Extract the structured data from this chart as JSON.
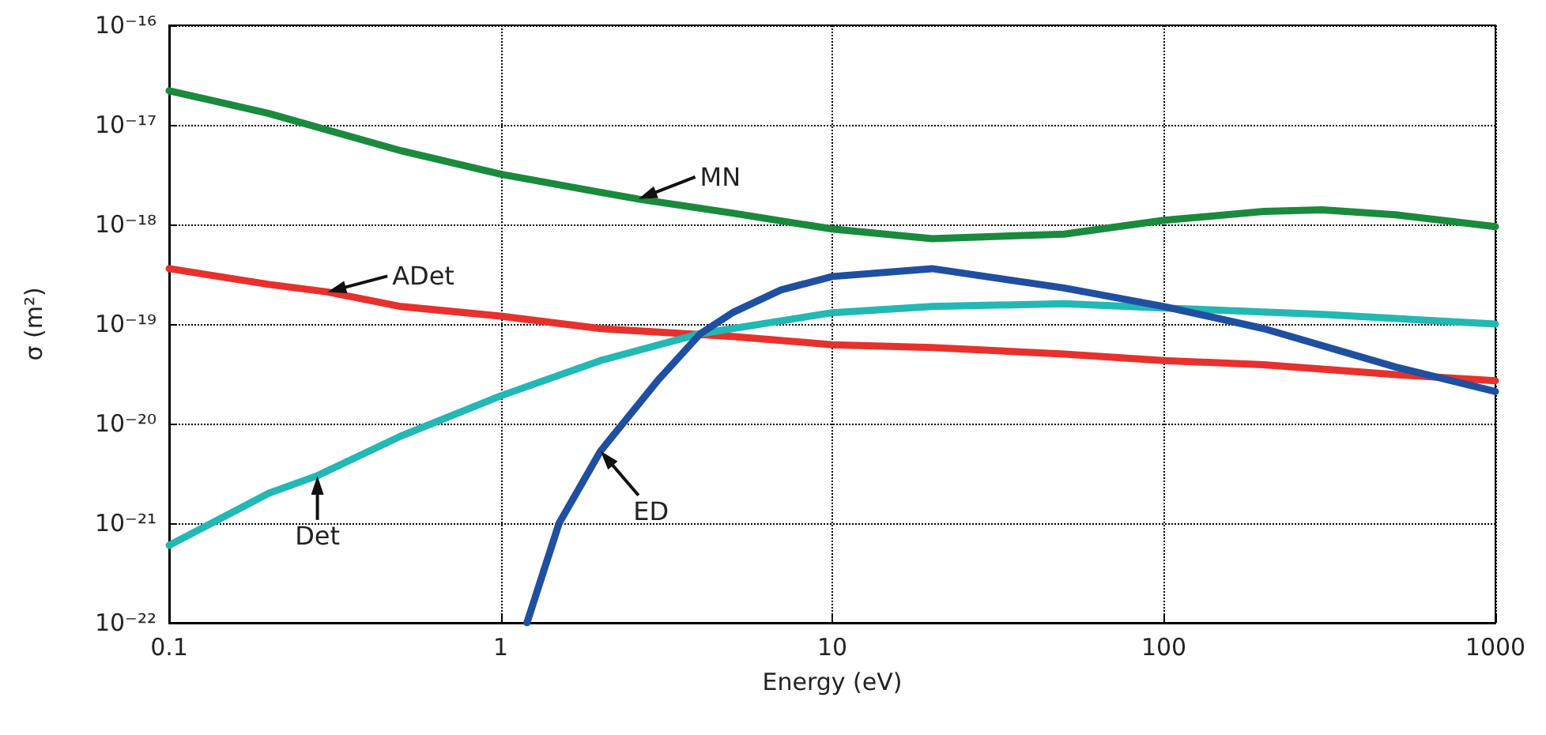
{
  "chart_data": {
    "type": "line",
    "xlabel": "Energy (eV)",
    "ylabel": "σ (m²)",
    "log": "xy",
    "grid": true,
    "marker": "none",
    "line_style": "solid",
    "xlim": [
      0.1,
      1000
    ],
    "xticks": [
      0.1,
      1,
      10,
      100,
      1000
    ],
    "ylim": [
      1e-22,
      1e-16
    ],
    "yticks": [
      {
        "value": 1e-22,
        "label": "10⁻²²"
      },
      {
        "value": 1e-21,
        "label": "10⁻²¹"
      },
      {
        "value": 1e-20,
        "label": "10⁻²⁰"
      },
      {
        "value": 1e-19,
        "label": "10⁻¹⁹"
      },
      {
        "value": 1e-18,
        "label": "10⁻¹⁸"
      },
      {
        "value": 1e-17,
        "label": "10⁻¹⁷"
      },
      {
        "value": 1e-16,
        "label": "10⁻¹⁶"
      }
    ],
    "series": [
      {
        "color": "#1a8a3c",
        "x": [
          0.1,
          0.2,
          0.5,
          1,
          2,
          2.6,
          5,
          10,
          20,
          50,
          100,
          200,
          300,
          500,
          1000
        ],
        "values": [
          2.2e-17,
          1.3e-17,
          5.5e-18,
          3.2e-18,
          2.1e-18,
          1.8e-18,
          1.3e-18,
          9e-19,
          7.2e-19,
          8e-19,
          1.1e-18,
          1.35e-18,
          1.4e-18,
          1.25e-18,
          9.5e-19
        ]
      },
      {
        "color": "#e8302c",
        "x": [
          0.1,
          0.2,
          0.3,
          0.5,
          1,
          2,
          5,
          10,
          20,
          50,
          100,
          200,
          500,
          1000
        ],
        "values": [
          3.6e-19,
          2.5e-19,
          2.1e-19,
          1.5e-19,
          1.2e-19,
          9e-20,
          7.5e-20,
          6.2e-20,
          5.8e-20,
          5e-20,
          4.3e-20,
          3.9e-20,
          3.1e-20,
          2.7e-20
        ]
      },
      {
        "color": "#22b8b4",
        "x": [
          0.1,
          0.2,
          0.28,
          0.5,
          1,
          2,
          4,
          10,
          20,
          50,
          100,
          300,
          1000
        ],
        "values": [
          6e-22,
          2e-21,
          3e-21,
          7.5e-21,
          1.9e-20,
          4.3e-20,
          8e-20,
          1.3e-19,
          1.5e-19,
          1.6e-19,
          1.45e-19,
          1.25e-19,
          1e-19
        ]
      },
      {
        "color": "#1f4fa0",
        "x": [
          1.2,
          1.5,
          2,
          3,
          4,
          5,
          7,
          10,
          20,
          50,
          100,
          200,
          500,
          1000
        ],
        "values": [
          1e-22,
          1e-21,
          5.3e-21,
          2.8e-20,
          8e-20,
          1.3e-19,
          2.2e-19,
          3e-19,
          3.6e-19,
          2.3e-19,
          1.5e-19,
          9e-20,
          3.7e-20,
          2.1e-20
        ]
      }
    ],
    "annotations": [
      {
        "text": "MN",
        "x": 2.6,
        "y": 1.8e-18
      },
      {
        "text": "ADet",
        "x": 0.3,
        "y": 2.1e-19
      },
      {
        "text": "ED",
        "x": 2,
        "y": 5.3e-21
      },
      {
        "text": "Det",
        "x": 0.28,
        "y": 3e-21
      }
    ]
  }
}
